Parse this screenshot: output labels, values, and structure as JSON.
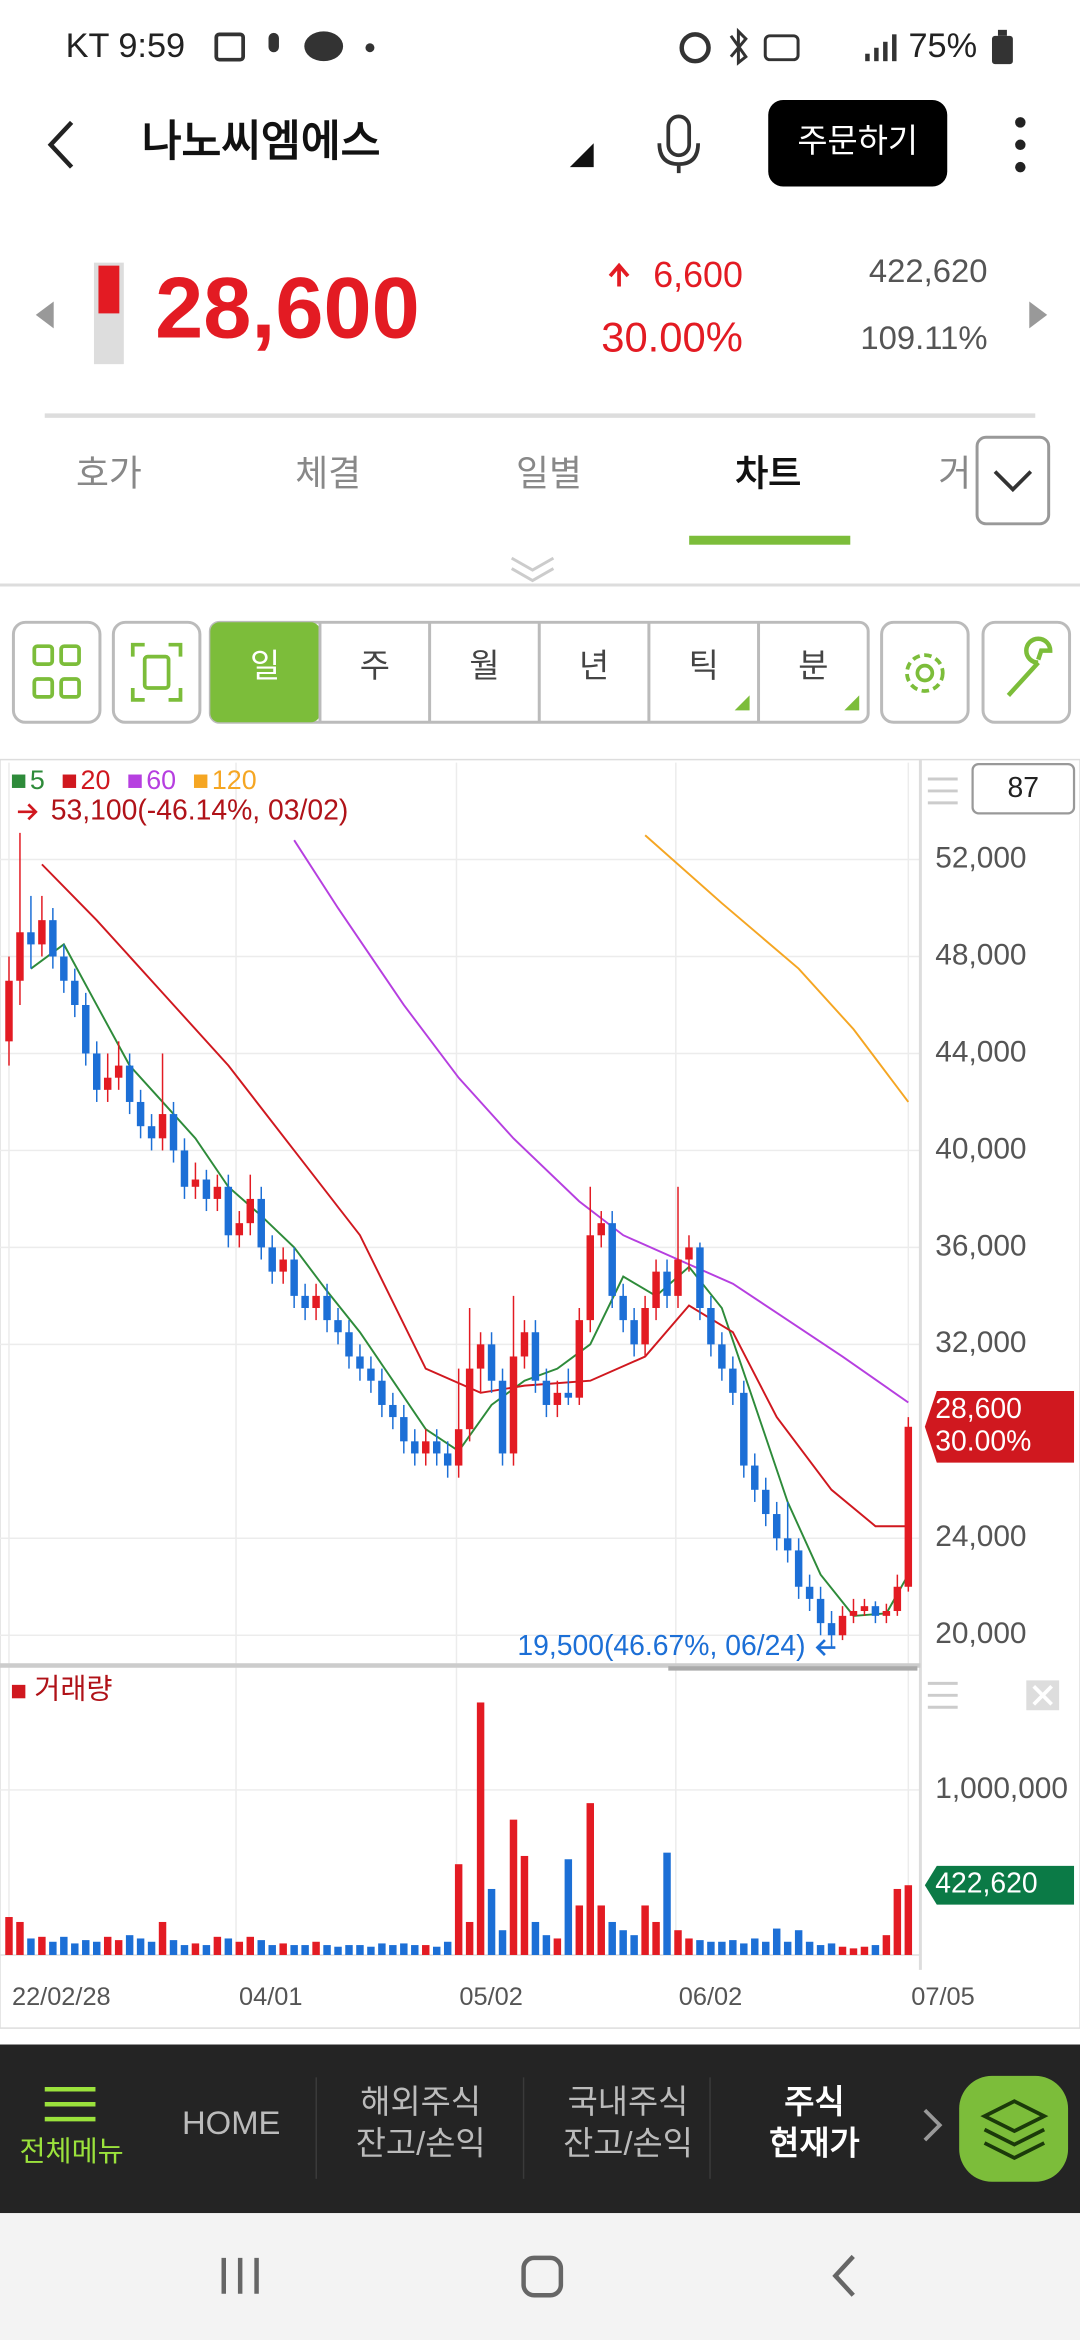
{
  "status_bar": {
    "carrier_time": "KT 9:59",
    "battery": "75%"
  },
  "header": {
    "title": "나노씨엠에스",
    "order_button": "주문하기"
  },
  "quote": {
    "price": "28,600",
    "change": "6,600",
    "change_rate": "30.00%",
    "volume": "422,620",
    "volume_ratio": "109.11%"
  },
  "tabs": [
    "호가",
    "체결",
    "일별",
    "차트",
    "거"
  ],
  "active_tab": 3,
  "periods": [
    "일",
    "주",
    "월",
    "년",
    "틱",
    "분"
  ],
  "active_period": 0,
  "chart_data": {
    "type": "candlestick",
    "max_label": "53,100(-46.14%, 03/02)",
    "min_label": "19,500(46.67%, 06/24)",
    "count_box": "87",
    "ylim": [
      19000,
      56000
    ],
    "yticks": [
      {
        "value": 52000,
        "label": "52,000"
      },
      {
        "value": 48000,
        "label": "48,000"
      },
      {
        "value": 44000,
        "label": "44,000"
      },
      {
        "value": 40000,
        "label": "40,000"
      },
      {
        "value": 36000,
        "label": "36,000"
      },
      {
        "value": 32000,
        "label": "32,000"
      },
      {
        "value": 24000,
        "label": "24,000"
      },
      {
        "value": 20000,
        "label": "20,000"
      }
    ],
    "xlim": [
      -0.82,
      83.1
    ],
    "xticks": [
      {
        "value": 0,
        "label": "22/02/28"
      },
      {
        "value": 20.7,
        "label": "04/01"
      },
      {
        "value": 40.8,
        "label": "05/02"
      },
      {
        "value": 60.8,
        "label": "06/02"
      },
      {
        "value": 82,
        "label": "07/05"
      }
    ],
    "up_color": "#e31b23",
    "down_color": "#1c6fd6",
    "candles": [
      [
        44500,
        48000,
        43500,
        47000
      ],
      [
        47000,
        53100,
        46000,
        49000
      ],
      [
        49000,
        50500,
        47500,
        48500
      ],
      [
        48500,
        50500,
        48000,
        49500
      ],
      [
        49500,
        50000,
        47500,
        48000
      ],
      [
        48000,
        48500,
        46500,
        47000
      ],
      [
        47000,
        47500,
        45500,
        46000
      ],
      [
        46000,
        46500,
        43500,
        44000
      ],
      [
        44000,
        44500,
        42000,
        42500
      ],
      [
        42500,
        44000,
        42000,
        43000
      ],
      [
        43000,
        44500,
        42500,
        43500
      ],
      [
        43500,
        44000,
        41500,
        42000
      ],
      [
        42000,
        42500,
        40500,
        41000
      ],
      [
        41000,
        41500,
        40000,
        40500
      ],
      [
        40500,
        44000,
        40000,
        41500
      ],
      [
        41500,
        42000,
        39500,
        40000
      ],
      [
        40000,
        40500,
        38000,
        38500
      ],
      [
        38500,
        39500,
        38000,
        38800
      ],
      [
        38800,
        39200,
        37500,
        38000
      ],
      [
        38000,
        39000,
        37500,
        38500
      ],
      [
        38500,
        39000,
        36000,
        36500
      ],
      [
        36500,
        37500,
        36000,
        37000
      ],
      [
        37000,
        39000,
        36500,
        38000
      ],
      [
        38000,
        38500,
        35500,
        36000
      ],
      [
        36000,
        36500,
        34500,
        35000
      ],
      [
        35000,
        36000,
        34500,
        35500
      ],
      [
        35500,
        36000,
        33500,
        34000
      ],
      [
        34000,
        34500,
        33000,
        33500
      ],
      [
        33500,
        34500,
        33000,
        34000
      ],
      [
        34000,
        34500,
        32500,
        33000
      ],
      [
        33000,
        33500,
        32000,
        32500
      ],
      [
        32500,
        33000,
        31000,
        31500
      ],
      [
        31500,
        32000,
        30500,
        31000
      ],
      [
        31000,
        31500,
        30000,
        30500
      ],
      [
        30500,
        31000,
        29000,
        29500
      ],
      [
        29500,
        30000,
        28500,
        29000
      ],
      [
        29000,
        29500,
        27500,
        28000
      ],
      [
        28000,
        28500,
        27000,
        27500
      ],
      [
        27500,
        28500,
        27000,
        28000
      ],
      [
        28000,
        28500,
        27000,
        27500
      ],
      [
        27500,
        28000,
        26500,
        27000
      ],
      [
        27000,
        31000,
        26500,
        28500
      ],
      [
        28500,
        33500,
        28000,
        31000
      ],
      [
        31000,
        32500,
        30000,
        32000
      ],
      [
        32000,
        32500,
        30000,
        30500
      ],
      [
        30500,
        31000,
        27000,
        27500
      ],
      [
        27500,
        34000,
        27000,
        31500
      ],
      [
        31500,
        33000,
        31000,
        32500
      ],
      [
        32500,
        33000,
        30000,
        30500
      ],
      [
        30500,
        31000,
        29000,
        29500
      ],
      [
        29500,
        30500,
        29000,
        30000
      ],
      [
        30000,
        31000,
        29500,
        29800
      ],
      [
        29800,
        33500,
        29500,
        33000
      ],
      [
        33000,
        38500,
        32500,
        36500
      ],
      [
        36500,
        37500,
        36000,
        37000
      ],
      [
        37000,
        37500,
        33500,
        34000
      ],
      [
        34000,
        34500,
        32500,
        33000
      ],
      [
        33000,
        33500,
        31500,
        32000
      ],
      [
        32000,
        34000,
        31500,
        33500
      ],
      [
        33500,
        35500,
        33000,
        35000
      ],
      [
        35000,
        35500,
        33500,
        34000
      ],
      [
        34000,
        38500,
        33500,
        35500
      ],
      [
        35500,
        36500,
        35000,
        36000
      ],
      [
        36000,
        36200,
        33000,
        33500
      ],
      [
        33500,
        34000,
        31500,
        32000
      ],
      [
        32000,
        32500,
        30500,
        31000
      ],
      [
        31000,
        31500,
        29500,
        30000
      ],
      [
        30000,
        30500,
        26500,
        27000
      ],
      [
        27000,
        27500,
        25500,
        26000
      ],
      [
        26000,
        26500,
        24500,
        25000
      ],
      [
        25000,
        25500,
        23500,
        24000
      ],
      [
        24000,
        25500,
        23000,
        23500
      ],
      [
        23500,
        24000,
        21500,
        22000
      ],
      [
        22000,
        22500,
        21000,
        21500
      ],
      [
        21500,
        22000,
        20000,
        20500
      ],
      [
        20500,
        21000,
        19500,
        20000
      ],
      [
        20000,
        21200,
        19800,
        20800
      ],
      [
        20800,
        21500,
        20500,
        21000
      ],
      [
        21000,
        21500,
        20800,
        21200
      ],
      [
        21200,
        21400,
        20500,
        20800
      ],
      [
        20800,
        21300,
        20500,
        21000
      ],
      [
        21000,
        22500,
        20800,
        22000
      ],
      [
        22000,
        29000,
        21800,
        28600
      ]
    ],
    "moving_averages": [
      {
        "name": "5",
        "color": "#2e8b3a",
        "x": [
          2,
          5,
          8,
          11,
          14,
          17,
          20,
          23,
          26,
          29,
          32,
          35,
          38,
          41,
          44,
          47,
          50,
          53,
          56,
          59,
          62,
          65,
          68,
          71,
          74,
          77,
          80,
          82
        ],
        "values": [
          47500,
          48500,
          46000,
          43500,
          42000,
          40500,
          38500,
          37300,
          36000,
          34200,
          32500,
          30500,
          28500,
          27600,
          29500,
          30500,
          31000,
          32000,
          34800,
          34000,
          35200,
          33500,
          29500,
          25500,
          22500,
          20800,
          20900,
          22500
        ]
      },
      {
        "name": "20",
        "color": "#d0181f",
        "x": [
          3,
          8,
          14,
          20,
          26,
          32,
          38,
          43,
          47,
          53,
          58,
          62,
          66,
          70,
          75,
          79,
          82
        ],
        "values": [
          51800,
          49500,
          46500,
          43500,
          40000,
          36500,
          31000,
          30000,
          30300,
          30500,
          31500,
          33600,
          32500,
          29000,
          26000,
          24500,
          24500
        ]
      },
      {
        "name": "60",
        "color": "#b63fe0",
        "x": [
          26,
          30,
          36,
          41,
          46,
          52,
          56,
          61,
          66,
          70,
          76,
          82
        ],
        "values": [
          52800,
          50000,
          46000,
          43000,
          40500,
          37900,
          36500,
          35500,
          34500,
          33300,
          31500,
          29600
        ]
      },
      {
        "name": "120",
        "color": "#f5a623",
        "x": [
          58,
          65,
          72,
          77,
          82
        ],
        "values": [
          53000,
          50200,
          47500,
          45000,
          42000
        ]
      }
    ],
    "price_tag": {
      "price": "28,600",
      "rate": "30.00%"
    },
    "volume": {
      "title": "거래량",
      "ylim": [
        0,
        1700000
      ],
      "yticks": [
        {
          "value": 1000000,
          "label": "1,000,000"
        }
      ],
      "tag": "422,620",
      "values": [
        230000,
        200000,
        100000,
        110000,
        80000,
        110000,
        70000,
        90000,
        80000,
        110000,
        90000,
        120000,
        100000,
        80000,
        200000,
        90000,
        60000,
        70000,
        60000,
        110000,
        100000,
        80000,
        110000,
        90000,
        60000,
        70000,
        60000,
        60000,
        80000,
        60000,
        50000,
        60000,
        60000,
        50000,
        70000,
        60000,
        70000,
        60000,
        60000,
        50000,
        80000,
        550000,
        200000,
        1530000,
        400000,
        150000,
        820000,
        600000,
        200000,
        120000,
        100000,
        580000,
        300000,
        920000,
        300000,
        200000,
        150000,
        120000,
        300000,
        200000,
        620000,
        150000,
        100000,
        90000,
        80000,
        80000,
        90000,
        70000,
        100000,
        80000,
        160000,
        80000,
        150000,
        80000,
        60000,
        70000,
        50000,
        40000,
        50000,
        60000,
        120000,
        400000,
        422620
      ]
    }
  },
  "bottom_nav": {
    "menu": "전체메뉴",
    "items": [
      [
        "HOME"
      ],
      [
        "해외주식",
        "잔고/손익"
      ],
      [
        "국내주식",
        "잔고/손익"
      ],
      [
        "주식",
        "현재가"
      ]
    ]
  }
}
